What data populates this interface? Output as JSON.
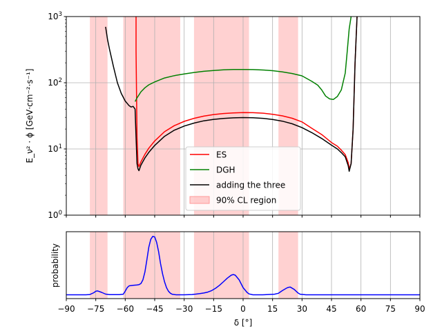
{
  "chart_data": [
    {
      "type": "line",
      "yscale": "log",
      "xlim": [
        -90,
        90
      ],
      "ylim": [
        1,
        1000
      ],
      "ylabel": "E_ν² · ϕ [GeV·cm⁻²·s⁻¹]",
      "grid": true,
      "x_ticks": [
        -90,
        -75,
        -60,
        -45,
        -30,
        -15,
        0,
        15,
        30,
        45,
        60,
        75,
        90
      ],
      "y_ticks": [
        {
          "value": 1,
          "label": "10",
          "exp": "0"
        },
        {
          "value": 10,
          "label": "10",
          "exp": "1"
        },
        {
          "value": 100,
          "label": "10",
          "exp": "2"
        },
        {
          "value": 1000,
          "label": "10",
          "exp": "3"
        }
      ],
      "cl_regions": [
        [
          -78,
          -69
        ],
        [
          -61,
          -32
        ],
        [
          -25,
          3
        ],
        [
          18,
          28
        ]
      ],
      "legend_position": "lower-center",
      "legend": [
        {
          "label": "ES",
          "color": "#ff0000",
          "kind": "line"
        },
        {
          "label": "DGH",
          "color": "#008000",
          "kind": "line"
        },
        {
          "label": "adding the three",
          "color": "#000000",
          "kind": "line"
        },
        {
          "label": "90% CL region",
          "color": "#ff9999",
          "kind": "patch"
        }
      ],
      "series": [
        {
          "key": "es",
          "color": "#ff0000",
          "x": [
            -54.5,
            -54.5,
            -54,
            -53.5,
            -53,
            -52,
            -50,
            -48,
            -45,
            -40,
            -35,
            -30,
            -25,
            -20,
            -15,
            -10,
            -5,
            0,
            5,
            10,
            15,
            20,
            25,
            30,
            35,
            40,
            45,
            48,
            50,
            52,
            53.5,
            54,
            55,
            56,
            57,
            58
          ],
          "y": [
            1000,
            300,
            15,
            6,
            5.4,
            6.4,
            8.3,
            10.3,
            13.2,
            18.2,
            22.5,
            26.1,
            29,
            31.3,
            33.1,
            34.3,
            35.1,
            35.5,
            35.3,
            34.7,
            33.4,
            31.6,
            29.1,
            25.6,
            20.5,
            16.5,
            12.5,
            11,
            9.6,
            8.2,
            6.2,
            5.0,
            6.0,
            20,
            200,
            1000
          ]
        },
        {
          "key": "dgh",
          "color": "#008000",
          "x": [
            -55,
            -54,
            -52,
            -50,
            -48,
            -45,
            -40,
            -35,
            -30,
            -25,
            -20,
            -15,
            -10,
            -5,
            0,
            5,
            10,
            15,
            20,
            25,
            30,
            35,
            38,
            40,
            42,
            44,
            46,
            48,
            50,
            52,
            53,
            54,
            55
          ],
          "y": [
            52,
            59,
            73,
            84,
            93,
            103,
            118,
            128,
            136,
            143,
            149,
            153,
            157,
            159,
            159,
            158,
            156,
            152,
            146,
            138,
            127,
            105,
            92,
            78,
            63,
            57,
            56,
            62,
            78,
            140,
            300,
            650,
            1000
          ]
        },
        {
          "key": "sum",
          "color": "#000000",
          "x": [
            -70,
            -69,
            -68,
            -66,
            -64,
            -62,
            -60,
            -58,
            -57,
            -56,
            -55,
            -54.5,
            -54,
            -53.5,
            -53,
            -52,
            -50,
            -48,
            -45,
            -40,
            -35,
            -30,
            -25,
            -20,
            -15,
            -10,
            -5,
            0,
            5,
            10,
            15,
            20,
            25,
            30,
            35,
            40,
            45,
            48,
            50,
            52,
            53.5,
            54,
            55,
            56,
            57,
            58
          ],
          "y": [
            700,
            450,
            320,
            175,
            100,
            69,
            53,
            45,
            43,
            44,
            40,
            15,
            6,
            5.0,
            4.7,
            5.7,
            7.3,
            8.9,
            11.3,
            15.5,
            19.2,
            22.2,
            24.6,
            26.6,
            28,
            28.9,
            29.5,
            29.8,
            29.6,
            29,
            27.9,
            26.3,
            24,
            21,
            17.6,
            14.4,
            11.4,
            10,
            8.8,
            7.6,
            5.6,
            4.6,
            6.0,
            20,
            200,
            1000
          ]
        }
      ]
    },
    {
      "type": "line",
      "xlim": [
        -90,
        90
      ],
      "ylim": [
        0,
        1
      ],
      "ylabel": "probability",
      "xlabel": "δ [°]",
      "grid": true,
      "x_ticks": [
        -90,
        -75,
        -60,
        -45,
        -30,
        -15,
        0,
        15,
        30,
        45,
        60,
        75,
        90
      ],
      "cl_regions": [
        [
          -78,
          -69
        ],
        [
          -61,
          -32
        ],
        [
          -25,
          3
        ],
        [
          18,
          28
        ]
      ],
      "series": [
        {
          "key": "probability",
          "color": "#0000ff",
          "x": [
            -90,
            -80,
            -78,
            -76,
            -75,
            -74,
            -72,
            -70,
            -68,
            -63,
            -61,
            -60,
            -59,
            -58,
            -56,
            -54,
            -53,
            -52,
            -51,
            -50,
            -49,
            -48,
            -47,
            -46,
            -45,
            -44,
            -43,
            -42,
            -41,
            -40,
            -39,
            -38,
            -37,
            -36,
            -34,
            -30,
            -26,
            -25,
            -24,
            -22,
            -20,
            -18,
            -16,
            -14,
            -12,
            -10,
            -8,
            -6,
            -5,
            -4,
            -2,
            0,
            2,
            3,
            5,
            10,
            16,
            18,
            20,
            22,
            23,
            24,
            26,
            28,
            29,
            32,
            40,
            60,
            90
          ],
          "y": [
            0,
            0,
            0.005,
            0.035,
            0.06,
            0.065,
            0.04,
            0.012,
            0.003,
            0.003,
            0.01,
            0.06,
            0.12,
            0.15,
            0.16,
            0.165,
            0.17,
            0.19,
            0.25,
            0.38,
            0.58,
            0.8,
            0.93,
            0.98,
            0.97,
            0.88,
            0.72,
            0.52,
            0.35,
            0.22,
            0.12,
            0.06,
            0.025,
            0.008,
            0,
            0,
            0.005,
            0.008,
            0.012,
            0.02,
            0.03,
            0.045,
            0.07,
            0.11,
            0.16,
            0.22,
            0.28,
            0.33,
            0.34,
            0.33,
            0.25,
            0.12,
            0.04,
            0.015,
            0,
            0,
            0.01,
            0.025,
            0.07,
            0.11,
            0.125,
            0.13,
            0.09,
            0.03,
            0.01,
            0,
            0,
            0,
            0
          ]
        }
      ]
    }
  ]
}
